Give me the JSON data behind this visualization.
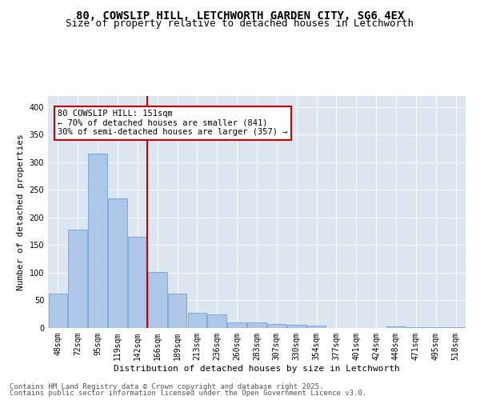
{
  "title_line1": "80, COWSLIP HILL, LETCHWORTH GARDEN CITY, SG6 4EX",
  "title_line2": "Size of property relative to detached houses in Letchworth",
  "xlabel": "Distribution of detached houses by size in Letchworth",
  "ylabel": "Number of detached properties",
  "categories": [
    "48sqm",
    "72sqm",
    "95sqm",
    "119sqm",
    "142sqm",
    "166sqm",
    "189sqm",
    "213sqm",
    "236sqm",
    "260sqm",
    "283sqm",
    "307sqm",
    "330sqm",
    "354sqm",
    "377sqm",
    "401sqm",
    "424sqm",
    "448sqm",
    "471sqm",
    "495sqm",
    "518sqm"
  ],
  "values": [
    63,
    178,
    315,
    234,
    165,
    102,
    62,
    28,
    24,
    10,
    10,
    7,
    6,
    4,
    0,
    0,
    0,
    3,
    1,
    1,
    2
  ],
  "bar_color": "#aec6e8",
  "bar_edge_color": "#5b9bd5",
  "vline_color": "#cc0000",
  "vline_pos": 4.5,
  "annotation_text": "80 COWSLIP HILL: 151sqm\n← 70% of detached houses are smaller (841)\n30% of semi-detached houses are larger (357) →",
  "annotation_box_facecolor": "#ffffff",
  "annotation_box_edgecolor": "#cc0000",
  "ylim": [
    0,
    420
  ],
  "yticks": [
    0,
    50,
    100,
    150,
    200,
    250,
    300,
    350,
    400
  ],
  "background_color": "#dce6f1",
  "footer_line1": "Contains HM Land Registry data © Crown copyright and database right 2025.",
  "footer_line2": "Contains public sector information licensed under the Open Government Licence v3.0.",
  "title_fontsize": 10,
  "subtitle_fontsize": 9,
  "axis_label_fontsize": 8,
  "tick_fontsize": 7,
  "annotation_fontsize": 7.5,
  "footer_fontsize": 6.5,
  "ylabel_fontsize": 8
}
